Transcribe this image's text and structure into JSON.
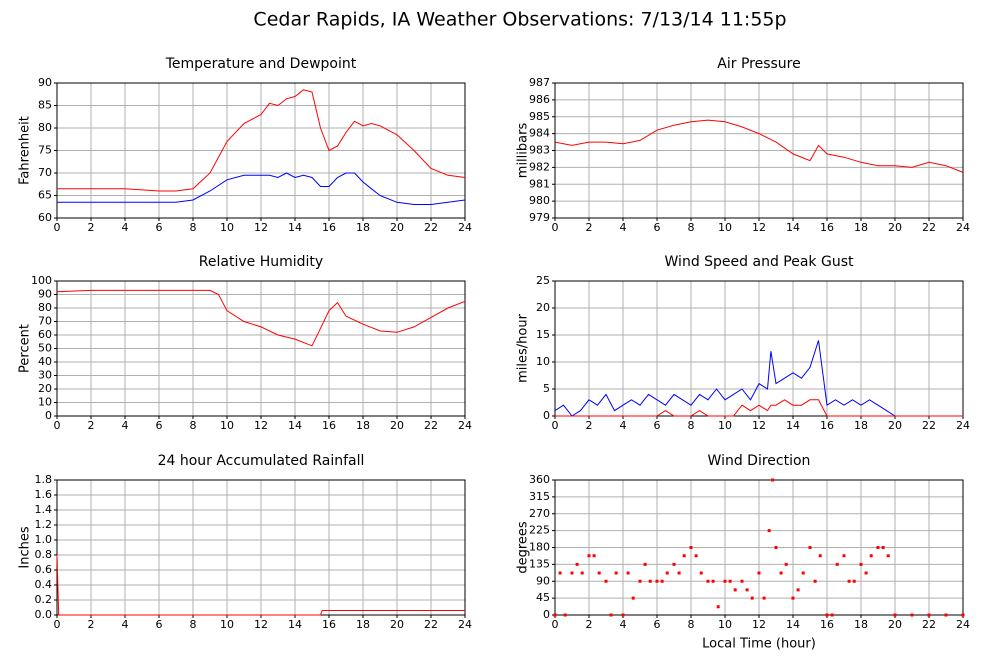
{
  "title": "Cedar Rapids, IA Weather Observations: 7/13/14 11:55p",
  "chart_data": [
    {
      "type": "line",
      "title": "Temperature and Dewpoint",
      "ylabel": "Fahrenheit",
      "x": [
        0,
        2,
        4,
        6,
        7,
        8,
        9,
        10,
        11,
        12,
        12.5,
        13,
        13.5,
        14,
        14.5,
        15,
        15.5,
        16,
        16.5,
        17,
        17.5,
        18,
        18.5,
        19,
        20,
        21,
        22,
        23,
        24
      ],
      "series": [
        {
          "color": "#ff0000",
          "values": [
            66.5,
            66.5,
            66.5,
            66,
            66,
            66.5,
            70,
            77,
            81,
            83,
            85.5,
            85,
            86.5,
            87,
            88.5,
            88,
            80,
            75,
            76,
            79,
            81.5,
            80.5,
            81,
            80.5,
            78.5,
            75,
            71,
            69.5,
            69
          ]
        },
        {
          "color": "#0000ff",
          "values": [
            63.5,
            63.5,
            63.5,
            63.5,
            63.5,
            64,
            66,
            68.5,
            69.5,
            69.5,
            69.5,
            69,
            70,
            69,
            69.5,
            69,
            67,
            67,
            69,
            70,
            70,
            68,
            66.5,
            65,
            63.5,
            63,
            63,
            63.5,
            64
          ]
        }
      ],
      "xlim": [
        0,
        24
      ],
      "xticks": [
        0,
        2,
        4,
        6,
        8,
        10,
        12,
        14,
        16,
        18,
        20,
        22,
        24
      ],
      "ylim": [
        60,
        90
      ],
      "yticks": [
        60,
        65,
        70,
        75,
        80,
        85,
        90
      ],
      "grid": true
    },
    {
      "type": "line",
      "title": "Air Pressure",
      "ylabel": "millibars",
      "x": [
        0,
        1,
        2,
        3,
        4,
        5,
        6,
        7,
        8,
        9,
        10,
        11,
        12,
        13,
        14,
        15,
        15.5,
        16,
        17,
        18,
        19,
        20,
        21,
        22,
        23,
        24
      ],
      "series": [
        {
          "color": "#ff0000",
          "values": [
            983.5,
            983.3,
            983.5,
            983.5,
            983.4,
            983.6,
            984.2,
            984.5,
            984.7,
            984.8,
            984.7,
            984.4,
            984.0,
            983.5,
            982.8,
            982.4,
            983.3,
            982.8,
            982.6,
            982.3,
            982.1,
            982.1,
            982.0,
            982.3,
            982.1,
            981.7
          ]
        }
      ],
      "xlim": [
        0,
        24
      ],
      "xticks": [
        0,
        2,
        4,
        6,
        8,
        10,
        12,
        14,
        16,
        18,
        20,
        22,
        24
      ],
      "ylim": [
        979,
        987
      ],
      "yticks": [
        979,
        980,
        981,
        982,
        983,
        984,
        985,
        986,
        987
      ],
      "grid": true
    },
    {
      "type": "line",
      "title": "Relative Humidity",
      "ylabel": "Percent",
      "x": [
        0,
        2,
        4,
        6,
        8,
        9,
        9.5,
        10,
        11,
        12,
        13,
        14,
        15,
        15.5,
        16,
        16.5,
        17,
        18,
        19,
        20,
        21,
        22,
        23,
        24
      ],
      "series": [
        {
          "color": "#ff0000",
          "values": [
            92,
            93,
            93,
            93,
            93,
            93,
            90,
            78,
            70,
            66,
            60,
            57,
            52,
            65,
            78,
            84,
            74,
            68,
            63,
            62,
            66,
            73,
            80,
            85
          ]
        }
      ],
      "xlim": [
        0,
        24
      ],
      "xticks": [
        0,
        2,
        4,
        6,
        8,
        10,
        12,
        14,
        16,
        18,
        20,
        22,
        24
      ],
      "ylim": [
        0,
        100
      ],
      "yticks": [
        0,
        10,
        20,
        30,
        40,
        50,
        60,
        70,
        80,
        90,
        100
      ],
      "grid": true
    },
    {
      "type": "line",
      "title": "Wind Speed and Peak Gust",
      "ylabel": "miles/hour",
      "x": [
        0,
        0.5,
        1,
        1.5,
        2,
        2.5,
        3,
        3.5,
        4,
        4.5,
        5,
        5.5,
        6,
        6.5,
        7,
        7.5,
        8,
        8.5,
        9,
        9.5,
        10,
        10.5,
        11,
        11.5,
        12,
        12.5,
        12.7,
        13,
        13.5,
        14,
        14.5,
        15,
        15.5,
        16,
        16.5,
        17,
        17.5,
        18,
        18.5,
        19,
        19.5,
        20,
        21,
        22,
        23,
        24
      ],
      "series": [
        {
          "color": "#0000ff",
          "values": [
            1,
            2,
            0,
            1,
            3,
            2,
            4,
            1,
            2,
            3,
            2,
            4,
            3,
            2,
            4,
            3,
            2,
            4,
            3,
            5,
            3,
            4,
            5,
            3,
            6,
            5,
            12,
            6,
            7,
            8,
            7,
            9,
            14,
            2,
            3,
            2,
            3,
            2,
            3,
            2,
            1,
            0,
            0,
            0,
            0,
            0
          ]
        },
        {
          "color": "#ff0000",
          "values": [
            0,
            0,
            0,
            0,
            0,
            0,
            0,
            0,
            0,
            0,
            0,
            0,
            0,
            1,
            0,
            0,
            0,
            1,
            0,
            0,
            0,
            0,
            2,
            1,
            2,
            1,
            2,
            2,
            3,
            2,
            2,
            3,
            3,
            0,
            0,
            0,
            0,
            0,
            0,
            0,
            0,
            0,
            0,
            0,
            0,
            0
          ]
        }
      ],
      "xlim": [
        0,
        24
      ],
      "xticks": [
        0,
        2,
        4,
        6,
        8,
        10,
        12,
        14,
        16,
        18,
        20,
        22,
        24
      ],
      "ylim": [
        0,
        25
      ],
      "yticks": [
        0,
        5,
        10,
        15,
        20,
        25
      ],
      "grid": true
    },
    {
      "type": "line",
      "title": "24 hour Accumulated Rainfall",
      "ylabel": "Inches",
      "x": [
        0,
        0.1,
        15.5,
        15.6,
        24
      ],
      "series": [
        {
          "color": "#ff0000",
          "values": [
            0.8,
            0,
            0,
            0.06,
            0.06
          ]
        }
      ],
      "xlim": [
        0,
        24
      ],
      "xticks": [
        0,
        2,
        4,
        6,
        8,
        10,
        12,
        14,
        16,
        18,
        20,
        22,
        24
      ],
      "ylim": [
        0,
        1.8
      ],
      "yticks": [
        {
          "value": 0,
          "label": "0.0"
        },
        0.2,
        0.4,
        0.6,
        0.8,
        {
          "value": 1,
          "label": "1.0"
        },
        1.2,
        1.4,
        1.6,
        1.8
      ],
      "grid": true
    },
    {
      "type": "scatter",
      "title": "Wind Direction",
      "ylabel": "degrees",
      "xlabel": "Local Time (hour)",
      "x": [
        0,
        0.3,
        0.6,
        1,
        1.3,
        1.6,
        2,
        2.3,
        2.6,
        3,
        3.3,
        3.6,
        4,
        4.3,
        4.6,
        5,
        5.3,
        5.6,
        6,
        6.3,
        6.6,
        7,
        7.3,
        7.6,
        8,
        8.3,
        8.6,
        9,
        9.3,
        9.6,
        10,
        10.3,
        10.6,
        11,
        11.3,
        11.6,
        12,
        12.3,
        12.6,
        12.8,
        13,
        13.3,
        13.6,
        14,
        14.3,
        14.6,
        15,
        15.3,
        15.6,
        16,
        16.3,
        16.6,
        17,
        17.3,
        17.6,
        18,
        18.3,
        18.6,
        19,
        19.3,
        19.6,
        20,
        21,
        22,
        23,
        24
      ],
      "values": [
        0,
        112,
        0,
        112,
        135,
        112,
        158,
        158,
        112,
        90,
        0,
        112,
        0,
        112,
        45,
        90,
        135,
        90,
        90,
        90,
        112,
        135,
        112,
        158,
        180,
        158,
        112,
        90,
        90,
        22,
        90,
        90,
        67,
        90,
        67,
        45,
        112,
        45,
        225,
        360,
        180,
        112,
        135,
        45,
        67,
        112,
        180,
        90,
        158,
        0,
        0,
        135,
        158,
        90,
        90,
        135,
        112,
        158,
        180,
        180,
        158,
        0,
        0,
        0,
        0,
        0
      ],
      "color": "#ff0000",
      "xlim": [
        0,
        24
      ],
      "xticks": [
        0,
        2,
        4,
        6,
        8,
        10,
        12,
        14,
        16,
        18,
        20,
        22,
        24
      ],
      "ylim": [
        0,
        360
      ],
      "yticks": [
        0,
        45,
        90,
        135,
        180,
        225,
        270,
        315,
        360
      ],
      "grid": true
    }
  ]
}
